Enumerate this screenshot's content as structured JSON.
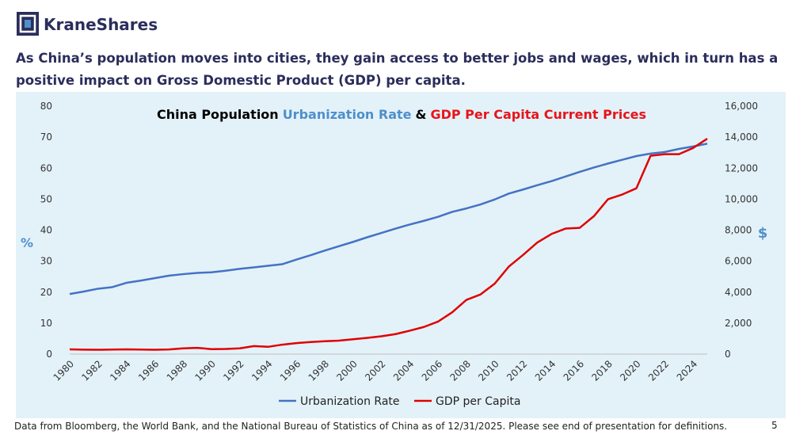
{
  "logo": {
    "text": "KraneShares"
  },
  "headline": "As China’s population moves into cities, they gain access to better jobs and wages, which in turn has a positive impact on Gross Domestic Product (GDP) per capita.",
  "footnote": "Data from Bloomberg, the World Bank, and the National Bureau of Statistics of China as of 12/31/2025. Please see end of presentation for definitions.",
  "page_number": "5",
  "chart_data": {
    "type": "line",
    "title_parts": [
      {
        "text": "China Population",
        "color": "#000000"
      },
      {
        "text": "Urbanization Rate",
        "color": "#4f8fca"
      },
      {
        "text": "&",
        "color": "#000000"
      },
      {
        "text": "GDP Per Capita Current Prices",
        "color": "#e8141b"
      }
    ],
    "x": [
      1980,
      1981,
      1982,
      1983,
      1984,
      1985,
      1986,
      1987,
      1988,
      1989,
      1990,
      1991,
      1992,
      1993,
      1994,
      1995,
      1996,
      1997,
      1998,
      1999,
      2000,
      2001,
      2002,
      2003,
      2004,
      2005,
      2006,
      2007,
      2008,
      2009,
      2010,
      2011,
      2012,
      2013,
      2014,
      2015,
      2016,
      2017,
      2018,
      2019,
      2020,
      2021,
      2022,
      2023,
      2024,
      2025
    ],
    "xlim": [
      1980,
      2025
    ],
    "xticks": [
      1980,
      1982,
      1984,
      1986,
      1988,
      1990,
      1992,
      1994,
      1996,
      1998,
      2000,
      2002,
      2004,
      2006,
      2008,
      2010,
      2012,
      2014,
      2016,
      2018,
      2020,
      2022,
      2024
    ],
    "ylim": [
      0,
      80
    ],
    "yticks": [
      0,
      10,
      20,
      30,
      40,
      50,
      60,
      70,
      80
    ],
    "ylabel": "%",
    "y2lim": [
      0,
      16000
    ],
    "y2ticks": [
      0,
      {
        "value": 2000,
        "label": "2,000"
      },
      {
        "value": 4000,
        "label": "4,000"
      },
      {
        "value": 6000,
        "label": "6,000"
      },
      {
        "value": 8000,
        "label": "8,000"
      },
      {
        "value": 10000,
        "label": "10,000"
      },
      {
        "value": 12000,
        "label": "12,000"
      },
      {
        "value": 14000,
        "label": "14,000"
      },
      {
        "value": 16000,
        "label": "16,000"
      }
    ],
    "y2label": "$",
    "legend": "bottom",
    "series": [
      {
        "name": "Urbanization Rate",
        "color": "#4472c4",
        "values": [
          19.4,
          20.2,
          21.1,
          21.6,
          23.0,
          23.7,
          24.5,
          25.3,
          25.8,
          26.2,
          26.4,
          26.9,
          27.5,
          28.0,
          28.5,
          29.0,
          30.5,
          31.9,
          33.4,
          34.8,
          36.2,
          37.7,
          39.1,
          40.5,
          41.8,
          43.0,
          44.3,
          45.9,
          47.0,
          48.3,
          49.9,
          51.8,
          53.1,
          54.5,
          55.8,
          57.3,
          58.8,
          60.2,
          61.5,
          62.7,
          63.9,
          64.7,
          65.2,
          66.2,
          67.0,
          67.9
        ]
      },
      {
        "name": "GDP per Capita",
        "color": "#e00000",
        "axis": "y2",
        "values": [
          307,
          290,
          280,
          295,
          310,
          295,
          280,
          300,
          370,
          405,
          320,
          330,
          370,
          520,
          470,
          610,
          710,
          780,
          830,
          870,
          960,
          1050,
          1150,
          1290,
          1510,
          1750,
          2100,
          2700,
          3500,
          3850,
          4550,
          5650,
          6400,
          7200,
          7750,
          8100,
          8150,
          8900,
          10000,
          10300,
          10700,
          12800,
          12900,
          12900,
          13300,
          13900
        ]
      }
    ]
  }
}
